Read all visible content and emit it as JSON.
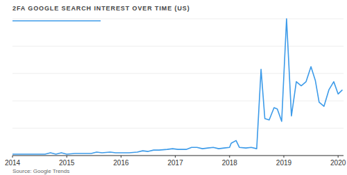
{
  "chart_data": {
    "type": "line",
    "title": "2FA GOOGLE SEARCH INTEREST OVER TIME (US)",
    "source": "Source: Google Trends",
    "x": [
      2014.0,
      2014.15,
      2014.3,
      2014.45,
      2014.6,
      2014.7,
      2014.8,
      2014.9,
      2015.0,
      2015.15,
      2015.3,
      2015.45,
      2015.55,
      2015.65,
      2015.8,
      2015.9,
      2016.0,
      2016.15,
      2016.3,
      2016.4,
      2016.5,
      2016.6,
      2016.7,
      2016.85,
      2016.95,
      2017.05,
      2017.2,
      2017.3,
      2017.4,
      2017.5,
      2017.6,
      2017.7,
      2017.8,
      2017.9,
      2018.0,
      2018.03,
      2018.12,
      2018.18,
      2018.3,
      2018.4,
      2018.5,
      2018.58,
      2018.65,
      2018.73,
      2018.82,
      2018.88,
      2018.96,
      2019.05,
      2019.14,
      2019.23,
      2019.32,
      2019.41,
      2019.5,
      2019.58,
      2019.65,
      2019.74,
      2019.83,
      2019.92,
      2020.0,
      2020.08
    ],
    "values": [
      1,
      1,
      1,
      1,
      1,
      2,
      1,
      2,
      1,
      1.5,
      1.5,
      1.5,
      2.5,
      2,
      2.5,
      2,
      2,
      2,
      2.5,
      3.5,
      3,
      4,
      4,
      4.5,
      5,
      4.5,
      4.5,
      6,
      6,
      5,
      5.5,
      6,
      5,
      5.5,
      6,
      9,
      11,
      6,
      5.5,
      6,
      5,
      63,
      27,
      26,
      35,
      34,
      25,
      100,
      29,
      54,
      51,
      54,
      65,
      55,
      39,
      36,
      48,
      54,
      45,
      48
    ],
    "color": "#3d9be9",
    "xlim": [
      2014,
      2020.1
    ],
    "xticks": [
      2014,
      2015,
      2016,
      2017,
      2018,
      2019,
      2020
    ],
    "ylim": [
      0,
      100
    ],
    "yticks": [
      0,
      20,
      40,
      60,
      80,
      100
    ],
    "grid": true,
    "tick_labels": "x"
  }
}
